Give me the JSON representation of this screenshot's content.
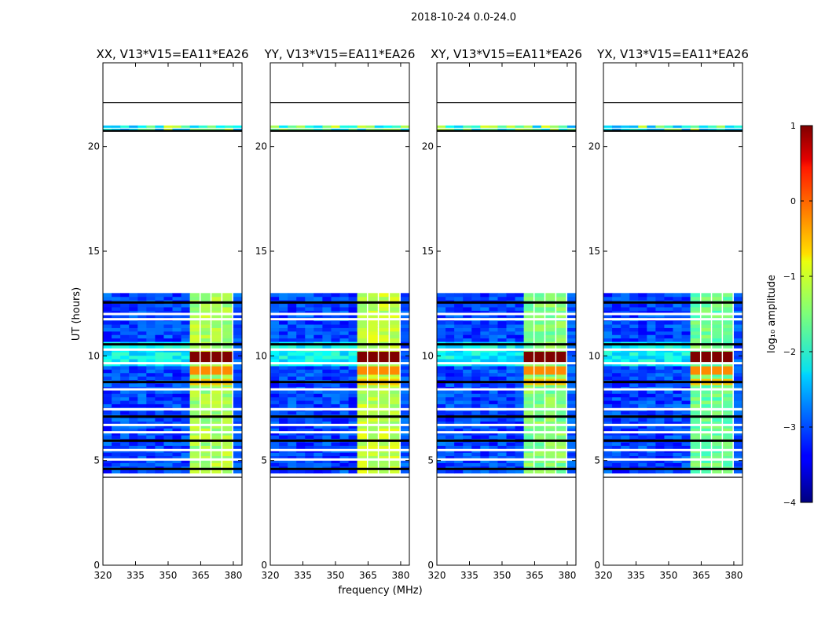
{
  "chart_data": {
    "type": "heatmap",
    "suptitle": "2018-10-24 0.0-24.0",
    "ylabel": "UT (hours)",
    "xlabel": "frequency (MHz)",
    "xlim": [
      320,
      384
    ],
    "ylim": [
      0,
      24
    ],
    "xticks": [
      "320",
      "335",
      "350",
      "365",
      "380"
    ],
    "yticks": [
      "0",
      "5",
      "10",
      "15",
      "20"
    ],
    "panels": [
      {
        "title": "XX, V13*V15=EA11*EA26",
        "band_level": -1.3
      },
      {
        "title": "YY, V13*V15=EA11*EA26",
        "band_level": -1.2
      },
      {
        "title": "XY, V13*V15=EA11*EA26",
        "band_level": -1.5
      },
      {
        "title": "YX, V13*V15=EA11*EA26",
        "band_level": -1.6
      }
    ],
    "data_block_hours": [
      4.4,
      13.0
    ],
    "hline_hours": [
      22.1,
      20.75,
      4.2
    ],
    "thin_strip_hours": [
      20.95,
      20.8
    ],
    "bright_band_mhz": [
      360,
      380
    ],
    "bright_band_segments": 4,
    "saturated_band_hours": [
      9.7,
      10.2
    ],
    "colorbar": {
      "label": "log₁₀ amplitude",
      "min": -4,
      "max": 1,
      "ticks": [
        "1",
        "0",
        "−1",
        "−2",
        "−3",
        "−4"
      ]
    }
  }
}
